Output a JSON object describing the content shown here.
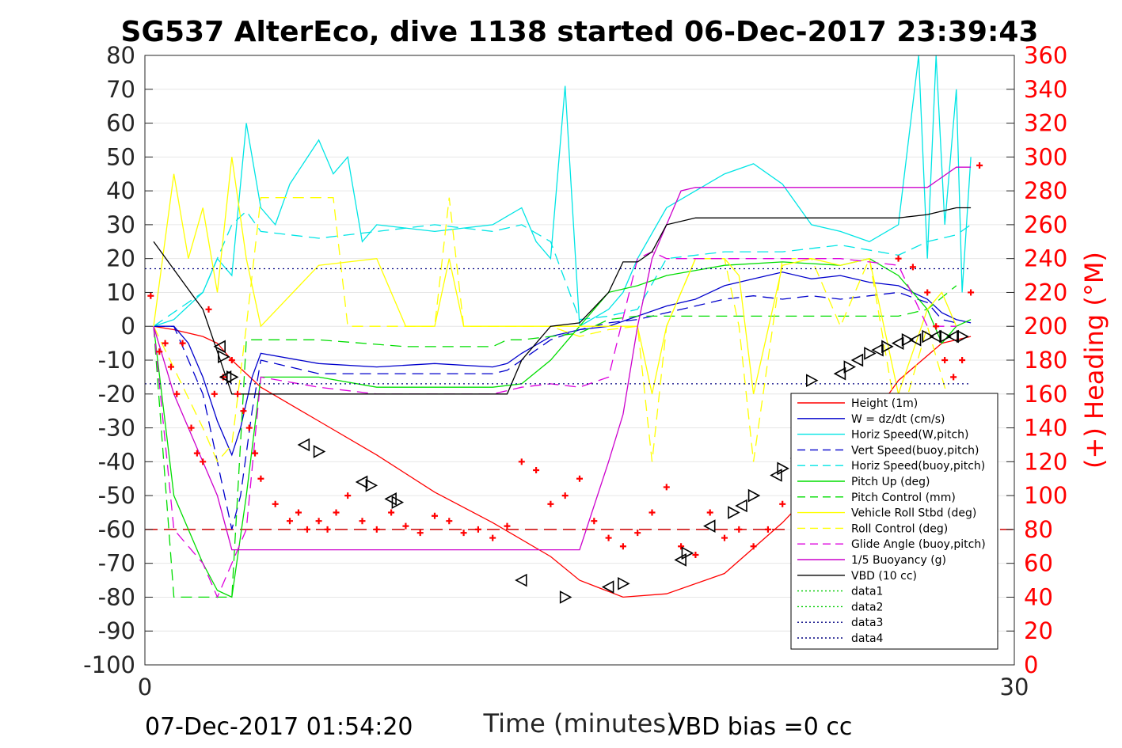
{
  "chart_data": {
    "type": "line",
    "title": "SG537 AlterEco, dive 1138 started 06-Dec-2017 23:39:43",
    "xlabel": "Time (minutes)",
    "ylabel_right": "(+) Heading (°M)",
    "footer_left": "07-Dec-2017 01:54:20",
    "footer_right": "VBD bias =0 cc",
    "xlim": [
      0,
      30
    ],
    "ylim": [
      -100,
      80
    ],
    "ylim_right": [
      0,
      360
    ],
    "x_ticks": [
      "0",
      "30"
    ],
    "y_ticks": [
      "80",
      "70",
      "60",
      "50",
      "40",
      "30",
      "20",
      "10",
      "0",
      "-10",
      "-20",
      "-30",
      "-40",
      "-50",
      "-60",
      "-70",
      "-80",
      "-90",
      "-100"
    ],
    "y_right_ticks": [
      "360",
      "340",
      "320",
      "300",
      "280",
      "260",
      "240",
      "220",
      "200",
      "180",
      "160",
      "140",
      "120",
      "100",
      "80",
      "60",
      "40",
      "20",
      "0"
    ],
    "grid": true,
    "legend_position": "lower-right",
    "colors": {
      "height": "#ff0000",
      "w": "#0000cc",
      "horiz_speed": "#00e5e5",
      "pitch": "#00dd00",
      "roll": "#ffff00",
      "glide": "#dd00dd",
      "buoyancy": "#cc00cc",
      "vbd": "#000000",
      "heading": "#ff0000",
      "axis": "#262626",
      "dotted_blue": "#000080",
      "dotted_green": "#00cc00"
    },
    "series": [
      {
        "name": "Height (1m)",
        "style": "solid",
        "color": "#ff0000",
        "x": [
          0.3,
          1.0,
          2.0,
          2.5,
          3.0,
          3.5,
          4.0,
          6.0,
          8.0,
          10.0,
          12.0,
          14.0,
          15.0,
          16.5,
          18.0,
          20.0,
          22.0,
          24.0,
          26.0,
          27.5,
          28.5
        ],
        "y": [
          0,
          -1,
          -3,
          -5,
          -10,
          -14,
          -18,
          -28,
          -38,
          -49,
          -58,
          -68,
          -75,
          -80,
          -79,
          -73,
          -58,
          -40,
          -16,
          -5,
          -3
        ]
      },
      {
        "name": "W = dz/dt (cm/s)",
        "style": "solid",
        "color": "#0000cc",
        "x": [
          0.3,
          1.0,
          1.5,
          2.0,
          2.5,
          3.0,
          3.3,
          3.7,
          4.0,
          6.0,
          8.0,
          10.0,
          12.0,
          12.5,
          13.0,
          14.0,
          15.0,
          16.0,
          17.0,
          18.0,
          19.0,
          20.0,
          21.0,
          22.0,
          23.0,
          24.0,
          25.0,
          26.0,
          27.0,
          27.5,
          28.0,
          28.5
        ],
        "y": [
          0,
          0,
          -5,
          -15,
          -28,
          -38,
          -30,
          -15,
          -8,
          -11,
          -12,
          -11,
          -12,
          -11,
          -8,
          -3,
          -1,
          0,
          3,
          6,
          8,
          12,
          14,
          16,
          14,
          15,
          13,
          12,
          8,
          4,
          2,
          1
        ]
      },
      {
        "name": "Horiz Speed(W,pitch)",
        "style": "solid",
        "color": "#00e5e5",
        "x": [
          0.3,
          1.0,
          2.0,
          2.5,
          3.0,
          3.5,
          4.0,
          4.5,
          5.0,
          6.0,
          6.5,
          7.0,
          7.5,
          8.0,
          10.0,
          12.0,
          13.0,
          13.5,
          14.0,
          14.5,
          15.0,
          16.0,
          16.5,
          17.0,
          18.0,
          19.0,
          20.0,
          21.0,
          22.0,
          23.0,
          24.0,
          25.0,
          26.0,
          26.7,
          27.0,
          27.3,
          27.6,
          28.0,
          28.2,
          28.5
        ],
        "y": [
          0,
          2,
          10,
          20,
          15,
          60,
          35,
          30,
          42,
          55,
          45,
          50,
          25,
          30,
          28,
          30,
          35,
          25,
          20,
          71,
          0,
          5,
          10,
          20,
          35,
          40,
          45,
          48,
          42,
          30,
          28,
          25,
          30,
          80,
          20,
          80,
          30,
          70,
          10,
          50
        ]
      },
      {
        "name": "Vert Speed(buoy,pitch)",
        "style": "dashed",
        "color": "#0000cc",
        "x": [
          0.3,
          1.0,
          2.0,
          2.5,
          3.0,
          3.3,
          3.7,
          4.0,
          6.0,
          8.0,
          10.0,
          12.0,
          12.5,
          13.0,
          14.0,
          15.0,
          16.0,
          17.0,
          18.0,
          19.0,
          20.0,
          21.0,
          22.0,
          23.0,
          24.0,
          25.0,
          26.0,
          27.0,
          27.5,
          28.0
        ],
        "y": [
          0,
          0,
          -20,
          -40,
          -60,
          -50,
          -25,
          -10,
          -14,
          -14,
          -14,
          -14,
          -13,
          -10,
          -4,
          -1,
          1,
          2,
          4,
          6,
          8,
          9,
          8,
          9,
          8,
          9,
          10,
          7,
          2,
          1
        ]
      },
      {
        "name": "Horiz Speed(buoy,pitch)",
        "style": "dashed",
        "color": "#00e5e5",
        "x": [
          0.3,
          2.0,
          3.0,
          3.5,
          4.0,
          6.0,
          8.0,
          10.0,
          12.0,
          13.0,
          14.0,
          15.0,
          16.0,
          17.0,
          18.0,
          20.0,
          22.0,
          24.0,
          26.0,
          27.0,
          28.0,
          28.5
        ],
        "y": [
          0,
          10,
          30,
          34,
          28,
          26,
          28,
          30,
          28,
          30,
          25,
          2,
          3,
          5,
          20,
          22,
          22,
          24,
          21,
          25,
          27,
          30
        ]
      },
      {
        "name": "Pitch Up (deg)",
        "style": "solid",
        "color": "#00dd00",
        "x": [
          0.3,
          1.0,
          2.0,
          2.5,
          3.0,
          3.5,
          4.0,
          6.0,
          8.0,
          10.0,
          12.0,
          13.0,
          14.0,
          15.0,
          16.0,
          17.0,
          18.0,
          20.0,
          22.0,
          24.0,
          25.0,
          26.0,
          27.0,
          27.5,
          28.0,
          28.5
        ],
        "y": [
          0,
          -50,
          -70,
          -78,
          -80,
          -50,
          -15,
          -15,
          -18,
          -18,
          -18,
          -17,
          -10,
          0,
          10,
          12,
          15,
          18,
          19,
          18,
          20,
          15,
          5,
          -5,
          0,
          2
        ]
      },
      {
        "name": "Pitch Control (mm)",
        "style": "dashed",
        "color": "#00dd00",
        "x": [
          0.3,
          1.0,
          2.0,
          2.5,
          3.0,
          3.5,
          6.0,
          9.0,
          12.0,
          12.5,
          13.0,
          14.0,
          15.0,
          16.0,
          17.0,
          18.0,
          20.0,
          22.0,
          24.0,
          26.0,
          27.0,
          28.0
        ],
        "y": [
          0,
          -80,
          -80,
          -80,
          -80,
          -4,
          -4,
          -6,
          -6,
          -4,
          -4,
          -3,
          -2,
          2,
          3,
          3,
          3,
          3,
          3,
          3,
          5,
          12
        ]
      },
      {
        "name": "Vehicle Roll Stbd (deg)",
        "style": "solid",
        "color": "#ffff00",
        "x": [
          0.3,
          1.0,
          1.5,
          2.0,
          2.5,
          3.0,
          3.5,
          4.0,
          6.0,
          8.0,
          9.0,
          10.0,
          10.5,
          11.0,
          12.0,
          13.0,
          14.0,
          15.0,
          16.0,
          17.0,
          17.5,
          18.0,
          19.0,
          20.0,
          20.5,
          21.0,
          22.0,
          23.0,
          24.0,
          25.0,
          26.0,
          27.0,
          27.5,
          28.0
        ],
        "y": [
          0,
          45,
          20,
          35,
          10,
          50,
          20,
          0,
          18,
          20,
          0,
          0,
          20,
          0,
          0,
          0,
          0,
          0,
          0,
          0,
          -20,
          0,
          20,
          20,
          15,
          -20,
          18,
          20,
          18,
          20,
          -20,
          5,
          10,
          0
        ]
      },
      {
        "name": "Roll Control (deg)",
        "style": "dashed",
        "color": "#ffff00",
        "x": [
          0.3,
          2.0,
          2.5,
          3.0,
          3.5,
          4.0,
          5.0,
          6.5,
          7.0,
          8.0,
          9.0,
          10.0,
          10.5,
          11.0,
          12.0,
          13.0,
          14.0,
          15.0,
          16.0,
          17.0,
          17.5,
          18.0,
          19.0,
          20.0,
          20.5,
          21.0,
          22.0,
          23.0,
          24.0,
          25.0,
          26.0,
          27.0,
          28.0
        ],
        "y": [
          0,
          -30,
          -40,
          -35,
          0,
          38,
          38,
          38,
          0,
          0,
          0,
          0,
          38,
          0,
          0,
          0,
          0,
          -3,
          -1,
          0,
          -40,
          0,
          20,
          20,
          0,
          -40,
          20,
          20,
          0,
          20,
          -30,
          0,
          -30
        ]
      },
      {
        "name": "Glide Angle (buoy,pitch)",
        "style": "dashed",
        "color": "#dd00dd",
        "x": [
          0.3,
          1.0,
          2.0,
          2.5,
          3.0,
          3.5,
          4.0,
          6.0,
          8.0,
          10.0,
          12.0,
          13.0,
          14.0,
          15.0,
          16.0,
          17.0,
          17.5,
          18.0,
          19.0,
          20.0,
          22.0,
          24.0,
          25.0,
          26.0,
          27.0,
          28.0
        ],
        "y": [
          0,
          -60,
          -70,
          -80,
          -70,
          -60,
          -15,
          -18,
          -20,
          -20,
          -20,
          -18,
          -17,
          -18,
          -15,
          20,
          22,
          20,
          20,
          20,
          20,
          20,
          19,
          18,
          0,
          0
        ]
      },
      {
        "name": "1/5 Buoyancy (g)",
        "style": "solid",
        "color": "#cc00cc",
        "x": [
          0.3,
          1.0,
          2.0,
          2.5,
          3.0,
          3.5,
          4.0,
          6.0,
          8.0,
          10.0,
          12.0,
          14.0,
          14.5,
          15.0,
          16.0,
          16.5,
          17.0,
          17.5,
          18.0,
          18.5,
          19.0,
          20.0,
          22.0,
          24.0,
          25.0,
          26.0,
          27.0,
          27.5,
          28.0,
          28.5
        ],
        "y": [
          0,
          -20,
          -40,
          -50,
          -66,
          -66,
          -66,
          -66,
          -66,
          -66,
          -66,
          -66,
          -66,
          -66,
          -40,
          -26,
          0,
          20,
          30,
          40,
          41,
          41,
          41,
          41,
          41,
          41,
          41,
          44,
          47,
          47
        ]
      },
      {
        "name": "VBD (10 cc)",
        "style": "solid",
        "color": "#000000",
        "x": [
          0.3,
          2.0,
          2.6,
          3.0,
          4.0,
          6.0,
          8.0,
          10.0,
          12.0,
          12.5,
          13.0,
          14.0,
          15.0,
          16.0,
          16.5,
          17.0,
          17.5,
          18.0,
          19.0,
          20.0,
          21.0,
          22.0,
          23.0,
          24.0,
          25.0,
          26.0,
          27.0,
          27.5,
          28.0,
          28.5
        ],
        "y": [
          25,
          5,
          -10,
          -20,
          -20,
          -20,
          -20,
          -20,
          -20,
          -20,
          -10,
          0,
          1,
          10,
          19,
          19,
          22,
          30,
          32,
          32,
          32,
          32,
          32,
          32,
          32,
          32,
          33,
          34,
          35,
          35
        ]
      },
      {
        "name": "data1",
        "style": "dotted",
        "color": "#00cc00",
        "x": [],
        "y": []
      },
      {
        "name": "data2",
        "style": "dotted",
        "color": "#00cc00",
        "x": [],
        "y": []
      },
      {
        "name": "data3",
        "style": "dotted",
        "color": "#000080",
        "x": [
          0,
          28.5
        ],
        "y": [
          17,
          17
        ]
      },
      {
        "name": "data4",
        "style": "dotted",
        "color": "#000080",
        "x": [
          0,
          28.5
        ],
        "y": [
          -17,
          -17
        ]
      }
    ],
    "heading_points": {
      "axis": "right",
      "color": "#ff0000",
      "x": [
        0.2,
        0.5,
        0.7,
        0.9,
        1.1,
        1.3,
        1.6,
        1.8,
        2.0,
        2.2,
        2.4,
        2.7,
        3.0,
        3.2,
        3.4,
        3.6,
        3.8,
        4.0,
        4.5,
        5.0,
        5.3,
        5.6,
        6.0,
        6.3,
        6.6,
        7.0,
        7.5,
        8.0,
        8.5,
        9.0,
        9.5,
        10.0,
        10.5,
        11.0,
        11.5,
        12.0,
        12.5,
        13.0,
        13.5,
        14.0,
        14.5,
        15.0,
        15.5,
        16.0,
        16.5,
        17.0,
        17.5,
        18.0,
        18.5,
        19.0,
        19.5,
        20.0,
        20.5,
        21.0,
        21.5,
        22.0,
        22.5,
        23.0,
        23.5,
        24.0,
        24.5,
        25.0,
        25.5,
        26.0,
        26.5,
        27.0,
        27.3,
        27.6,
        27.9,
        28.2,
        28.5,
        28.8
      ],
      "y": [
        218,
        185,
        190,
        176,
        160,
        190,
        140,
        125,
        120,
        210,
        160,
        170,
        180,
        160,
        150,
        140,
        125,
        110,
        95,
        85,
        90,
        80,
        85,
        80,
        90,
        100,
        85,
        80,
        90,
        82,
        78,
        88,
        85,
        78,
        80,
        75,
        82,
        120,
        115,
        95,
        100,
        110,
        85,
        75,
        70,
        78,
        90,
        105,
        70,
        65,
        90,
        75,
        80,
        70,
        80,
        95,
        110,
        120,
        90,
        75,
        80,
        85,
        90,
        240,
        235,
        220,
        200,
        180,
        170,
        180,
        220,
        295
      ]
    },
    "markers": {
      "x": [
        2.6,
        2.7,
        2.8,
        3.0,
        5.5,
        6.0,
        7.5,
        7.8,
        8.5,
        8.7,
        13.0,
        14.5,
        16.0,
        16.5,
        18.5,
        18.7,
        19.5,
        20.3,
        20.6,
        21.0,
        21.8,
        22.0,
        22.5,
        23.0,
        24.0,
        24.3,
        24.6,
        25.0,
        25.3,
        25.6,
        26.0,
        26.3,
        26.6,
        27.0,
        27.3,
        27.6,
        27.9,
        28.2
      ],
      "y": [
        -6,
        -9,
        -15,
        -15,
        -35,
        -37,
        -46,
        -47,
        -51,
        -52,
        -75,
        -80,
        -77,
        -76,
        -69,
        -67,
        -59,
        -55,
        -53,
        -50,
        -44,
        -42,
        -39,
        -16,
        -14,
        -12,
        -10,
        -8,
        -7,
        -6,
        -5,
        -4,
        -4,
        -3,
        -3,
        -3,
        -3,
        -3
      ]
    },
    "ref_line": {
      "color": "#cc0000",
      "style": "dashed",
      "y": -60
    }
  }
}
